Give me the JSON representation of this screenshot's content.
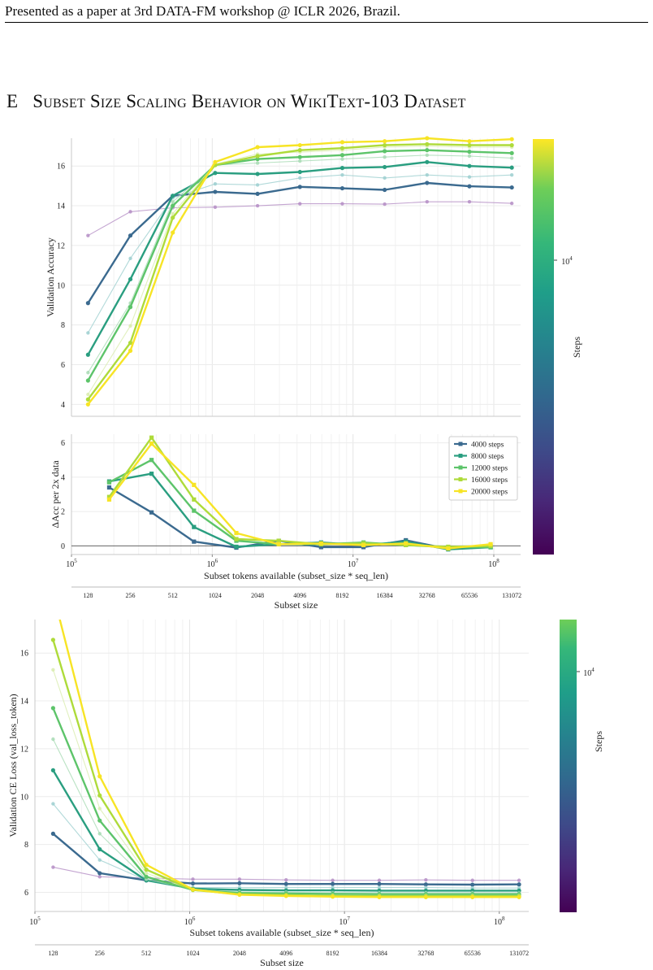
{
  "header": {
    "text": "Presented as a paper at 3rd DATA-FM workshop @ ICLR 2026, Brazil."
  },
  "section": {
    "number": "E",
    "title": "Subset Size Scaling Behavior on WikiText-103 Dataset"
  },
  "chart_data": [
    {
      "type": "line",
      "name": "validation-accuracy",
      "xscale": "log",
      "xlabel": "",
      "ylabel": "Validation Accuracy",
      "ylim": [
        3.4,
        17.4
      ],
      "yticks": [
        4,
        6,
        8,
        10,
        12,
        14,
        16
      ],
      "grid": true,
      "colorbar": {
        "label": "Steps",
        "tick": "10^4"
      },
      "x": [
        131072,
        262144,
        524288,
        1048576,
        2097152,
        4194304,
        8388608,
        16777216,
        33554432,
        67108864,
        134217728
      ],
      "series": [
        {
          "steps": 1000,
          "emphasis": false,
          "color": "#b58ec6",
          "values": [
            12.5,
            13.7,
            13.9,
            13.93,
            14.0,
            14.1,
            14.1,
            14.08,
            14.2,
            14.2,
            14.12
          ]
        },
        {
          "steps": 4000,
          "emphasis": true,
          "color": "#3b6a8f",
          "values": [
            9.1,
            12.5,
            14.5,
            14.7,
            14.6,
            14.95,
            14.88,
            14.8,
            15.15,
            14.98,
            14.92
          ]
        },
        {
          "steps": 6000,
          "emphasis": false,
          "color": "#9ecfd0",
          "values": [
            7.6,
            11.35,
            14.4,
            15.1,
            15.05,
            15.4,
            15.55,
            15.4,
            15.55,
            15.45,
            15.55
          ]
        },
        {
          "steps": 8000,
          "emphasis": true,
          "color": "#2a9e80",
          "values": [
            6.5,
            10.3,
            14.5,
            15.65,
            15.6,
            15.7,
            15.9,
            15.95,
            16.2,
            16.0,
            15.92
          ]
        },
        {
          "steps": 10000,
          "emphasis": false,
          "color": "#a8dbb4",
          "values": [
            5.6,
            9.1,
            14.2,
            16.05,
            16.15,
            16.25,
            16.35,
            16.45,
            16.55,
            16.5,
            16.4
          ]
        },
        {
          "steps": 12000,
          "emphasis": true,
          "color": "#5dc46a",
          "values": [
            5.2,
            8.9,
            14.0,
            16.05,
            16.35,
            16.45,
            16.55,
            16.75,
            16.8,
            16.72,
            16.65
          ]
        },
        {
          "steps": 14000,
          "emphasis": false,
          "color": "#d9ecae",
          "values": [
            4.5,
            7.95,
            13.6,
            16.1,
            16.6,
            16.7,
            16.8,
            16.95,
            17.0,
            16.95,
            16.95
          ]
        },
        {
          "steps": 16000,
          "emphasis": true,
          "color": "#aedb3a",
          "values": [
            4.25,
            7.1,
            13.4,
            16.05,
            16.5,
            16.8,
            16.9,
            17.05,
            17.1,
            17.05,
            17.05
          ]
        },
        {
          "steps": 20000,
          "emphasis": true,
          "color": "#f7e425",
          "values": [
            4.0,
            6.7,
            12.65,
            16.2,
            16.95,
            17.05,
            17.2,
            17.25,
            17.4,
            17.25,
            17.35
          ]
        }
      ]
    },
    {
      "type": "line",
      "name": "delta-accuracy",
      "xscale": "log",
      "xlabel": "Subset tokens available (subset_size * seq_len)",
      "ylabel": "ΔAcc per 2x data",
      "ylim": [
        -0.5,
        6.5
      ],
      "yticks": [
        0,
        2,
        4,
        6
      ],
      "xticks": [
        "10^5",
        "10^6",
        "10^7",
        "10^8"
      ],
      "grid": true,
      "legend": {
        "position": "upper-right",
        "entries": [
          "4000 steps",
          "8000 steps",
          "12000 steps",
          "16000 steps",
          "20000 steps"
        ]
      },
      "x": [
        185364,
        370728,
        741455,
        1482910,
        2965821,
        5931642,
        11863283,
        23726566,
        47453132,
        94906265
      ],
      "series": [
        {
          "name": "4000 steps",
          "color": "#3b6a8f",
          "values": [
            3.4,
            1.95,
            0.25,
            -0.1,
            0.3,
            -0.07,
            -0.07,
            0.33,
            -0.17,
            -0.06
          ]
        },
        {
          "name": "8000 steps",
          "color": "#2a9e80",
          "values": [
            3.75,
            4.2,
            1.1,
            -0.05,
            0.1,
            0.2,
            0.05,
            0.25,
            -0.2,
            -0.08
          ]
        },
        {
          "name": "12000 steps",
          "color": "#5dc46a",
          "values": [
            3.7,
            5.0,
            2.05,
            0.3,
            0.1,
            0.1,
            0.2,
            0.05,
            -0.08,
            -0.07
          ]
        },
        {
          "name": "16000 steps",
          "color": "#aedb3a",
          "values": [
            2.85,
            6.3,
            2.7,
            0.4,
            0.3,
            0.1,
            0.15,
            0.05,
            -0.05,
            0.0
          ]
        },
        {
          "name": "20000 steps",
          "color": "#f7e425",
          "values": [
            2.7,
            5.95,
            3.55,
            0.75,
            0.1,
            0.15,
            0.05,
            0.15,
            -0.15,
            0.1
          ]
        }
      ],
      "secondary_xaxis": {
        "label": "Subset size",
        "ticks": [
          "128",
          "256",
          "512",
          "1024",
          "2048",
          "4096",
          "8192",
          "16384",
          "32768",
          "65536",
          "131072"
        ]
      }
    },
    {
      "type": "line",
      "name": "validation-loss",
      "xscale": "log",
      "xlabel": "Subset tokens available (subset_size * seq_len)",
      "ylabel": "Validation CE Loss (val_loss_token)",
      "ylim": [
        5.2,
        17.4
      ],
      "yticks": [
        6,
        8,
        10,
        12,
        14,
        16
      ],
      "xticks": [
        "10^5",
        "10^6",
        "10^7",
        "10^8"
      ],
      "grid": true,
      "colorbar": {
        "label": "Steps",
        "tick": "10^4"
      },
      "x": [
        131072,
        262144,
        524288,
        1048576,
        2097152,
        4194304,
        8388608,
        16777216,
        33554432,
        67108864,
        134217728
      ],
      "series": [
        {
          "steps": 1000,
          "emphasis": false,
          "color": "#b58ec6",
          "values": [
            7.05,
            6.65,
            6.6,
            6.55,
            6.55,
            6.52,
            6.5,
            6.5,
            6.52,
            6.5,
            6.5
          ]
        },
        {
          "steps": 4000,
          "emphasis": true,
          "color": "#3b6a8f",
          "values": [
            8.45,
            6.8,
            6.5,
            6.37,
            6.38,
            6.35,
            6.35,
            6.35,
            6.33,
            6.32,
            6.33
          ]
        },
        {
          "steps": 6000,
          "emphasis": false,
          "color": "#9ecfd0",
          "values": [
            9.7,
            7.35,
            6.5,
            6.2,
            6.2,
            6.2,
            6.2,
            6.2,
            6.2,
            6.18,
            6.18
          ]
        },
        {
          "steps": 8000,
          "emphasis": true,
          "color": "#2a9e80",
          "values": [
            11.1,
            7.8,
            6.5,
            6.15,
            6.1,
            6.08,
            6.08,
            6.07,
            6.07,
            6.07,
            6.07
          ]
        },
        {
          "steps": 10000,
          "emphasis": false,
          "color": "#a8dbb4",
          "values": [
            12.4,
            8.45,
            6.55,
            6.12,
            6.02,
            6.0,
            5.98,
            5.98,
            5.98,
            5.98,
            5.97
          ]
        },
        {
          "steps": 12000,
          "emphasis": true,
          "color": "#5dc46a",
          "values": [
            13.7,
            9.0,
            6.65,
            6.1,
            5.97,
            5.95,
            5.93,
            5.92,
            5.92,
            5.92,
            5.92
          ]
        },
        {
          "steps": 14000,
          "emphasis": false,
          "color": "#d9ecae",
          "values": [
            15.3,
            9.5,
            6.8,
            6.1,
            5.93,
            5.9,
            5.88,
            5.87,
            5.87,
            5.87,
            5.87
          ]
        },
        {
          "steps": 16000,
          "emphasis": true,
          "color": "#aedb3a",
          "values": [
            16.55,
            10.05,
            6.95,
            6.1,
            5.92,
            5.88,
            5.85,
            5.84,
            5.84,
            5.84,
            5.84
          ]
        },
        {
          "steps": 20000,
          "emphasis": true,
          "color": "#f7e425",
          "values": [
            18.5,
            10.85,
            7.15,
            6.12,
            5.9,
            5.85,
            5.82,
            5.8,
            5.8,
            5.8,
            5.8
          ]
        }
      ],
      "secondary_xaxis": {
        "label": "Subset size",
        "ticks": [
          "128",
          "256",
          "512",
          "1024",
          "2048",
          "4096",
          "8192",
          "16384",
          "32768",
          "65536",
          "131072"
        ]
      }
    }
  ]
}
